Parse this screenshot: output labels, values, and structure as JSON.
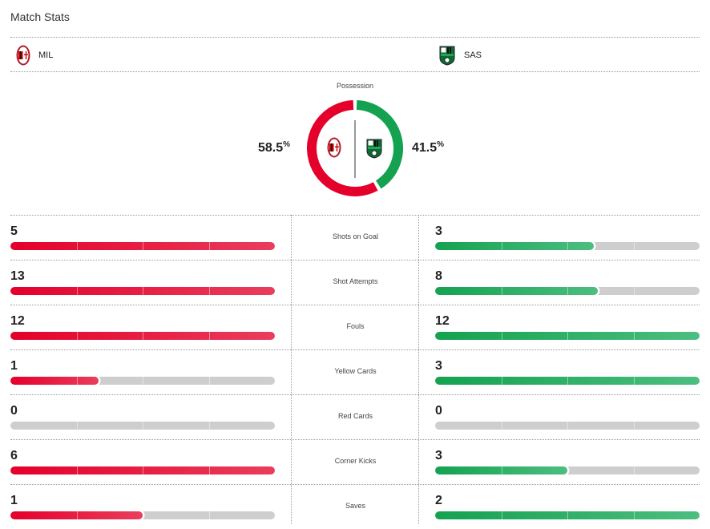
{
  "header": {
    "title": "Match Stats"
  },
  "teams": {
    "home": {
      "abbr": "MIL",
      "crest_icon": "ac-milan-crest-icon",
      "color": "#e4002b"
    },
    "away": {
      "abbr": "SAS",
      "crest_icon": "sassuolo-crest-icon",
      "color": "#14a250"
    }
  },
  "possession": {
    "label": "Possession",
    "home_pct": 58.5,
    "away_pct": 41.5,
    "home_text": "58.5",
    "away_text": "41.5",
    "unit": "%"
  },
  "stats": [
    {
      "label": "Shots on Goal",
      "home": 5,
      "away": 3,
      "home_text": "5",
      "away_text": "3"
    },
    {
      "label": "Shot Attempts",
      "home": 13,
      "away": 8,
      "home_text": "13",
      "away_text": "8"
    },
    {
      "label": "Fouls",
      "home": 12,
      "away": 12,
      "home_text": "12",
      "away_text": "12"
    },
    {
      "label": "Yellow Cards",
      "home": 1,
      "away": 3,
      "home_text": "1",
      "away_text": "3"
    },
    {
      "label": "Red Cards",
      "home": 0,
      "away": 0,
      "home_text": "0",
      "away_text": "0"
    },
    {
      "label": "Corner Kicks",
      "home": 6,
      "away": 3,
      "home_text": "6",
      "away_text": "3"
    },
    {
      "label": "Saves",
      "home": 1,
      "away": 2,
      "home_text": "1",
      "away_text": "2"
    }
  ]
}
